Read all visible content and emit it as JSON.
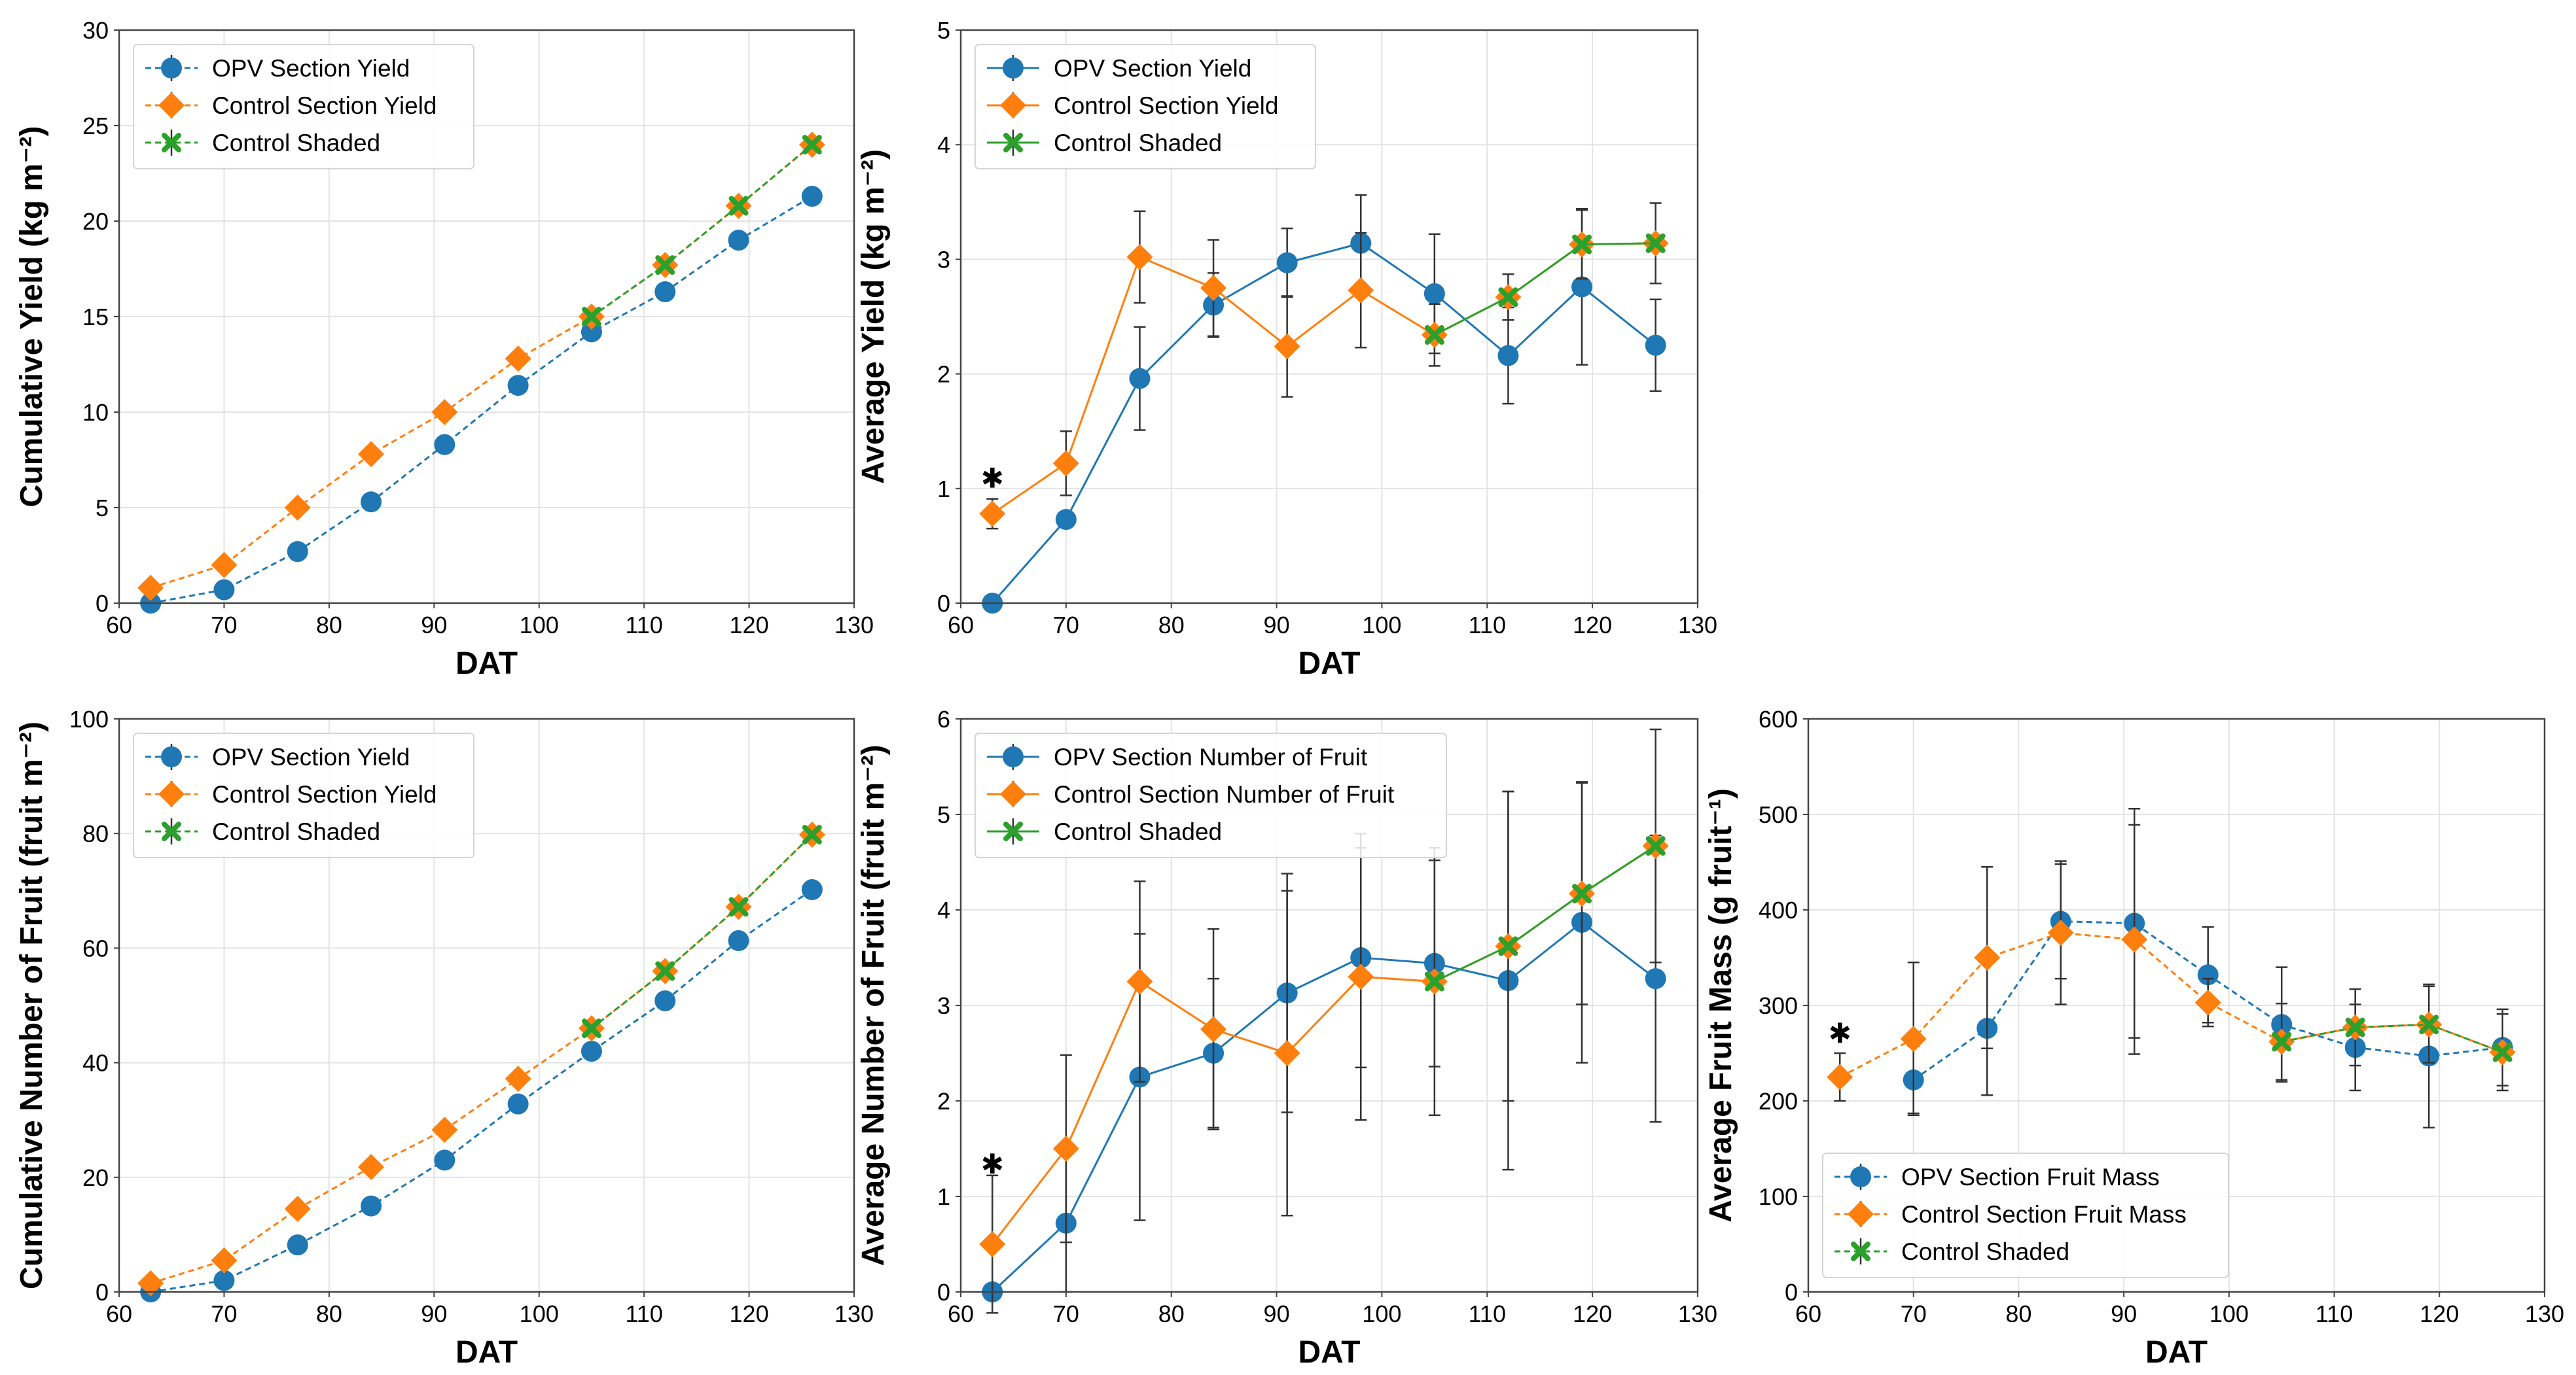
{
  "colors": {
    "opv": "#1f77b4",
    "control": "#ff7f0e",
    "shaded": "#2ca02c"
  },
  "chart_data": [
    {
      "type": "line",
      "panel": "top-left",
      "xlabel": "DAT",
      "ylabel": "Cumulative Yield (kg m⁻²)",
      "xlim": [
        60,
        130
      ],
      "ylim": [
        0,
        30
      ],
      "xticks": [
        60,
        70,
        80,
        90,
        100,
        110,
        120,
        130
      ],
      "yticks": [
        0,
        5,
        10,
        15,
        20,
        25,
        30
      ],
      "grid": true,
      "legend": {
        "placement": "upper-left",
        "entries": [
          "OPV Section Yield",
          "Control Section Yield",
          "Control Shaded"
        ]
      },
      "series": [
        {
          "name": "OPV Section Yield",
          "style": "dashed",
          "marker": "circle",
          "color": "opv",
          "x": [
            63,
            70,
            77,
            84,
            91,
            98,
            105,
            112,
            119,
            126
          ],
          "y": [
            0.0,
            0.7,
            2.7,
            5.3,
            8.3,
            11.4,
            14.2,
            16.3,
            19.0,
            21.3
          ]
        },
        {
          "name": "Control Section Yield",
          "style": "dashed",
          "marker": "diamond",
          "color": "control",
          "x": [
            63,
            70,
            77,
            84,
            91,
            98,
            105,
            112,
            119,
            126
          ],
          "y": [
            0.8,
            2.0,
            5.0,
            7.8,
            10.0,
            12.8,
            15.0,
            17.7,
            20.8,
            24.0
          ]
        },
        {
          "name": "Control Shaded",
          "style": "dashed",
          "marker": "x",
          "color": "shaded",
          "x": [
            105,
            112,
            119,
            126
          ],
          "y": [
            15.0,
            17.7,
            20.8,
            24.0
          ]
        }
      ]
    },
    {
      "type": "line",
      "panel": "top-middle",
      "xlabel": "DAT",
      "ylabel": "Average Yield (kg m⁻²)",
      "xlim": [
        60,
        130
      ],
      "ylim": [
        0,
        5
      ],
      "xticks": [
        60,
        70,
        80,
        90,
        100,
        110,
        120,
        130
      ],
      "yticks": [
        0,
        1,
        2,
        3,
        4,
        5
      ],
      "grid": true,
      "legend": {
        "placement": "upper-left",
        "entries": [
          "OPV Section Yield",
          "Control Section Yield",
          "Control Shaded"
        ]
      },
      "annotations": [
        {
          "text": "✱",
          "x": 63,
          "y": 1.1
        }
      ],
      "series": [
        {
          "name": "OPV Section Yield",
          "style": "solid",
          "marker": "circle",
          "color": "opv",
          "x": [
            63,
            70,
            77,
            84,
            91,
            98,
            105,
            112,
            119,
            126
          ],
          "y": [
            0.0,
            0.73,
            1.96,
            2.6,
            2.97,
            3.14,
            2.7,
            2.16,
            2.76,
            2.25
          ],
          "err": [
            0,
            0,
            0.45,
            0.28,
            0.3,
            0.42,
            0.52,
            0.42,
            0.68,
            0.4
          ]
        },
        {
          "name": "Control Section Yield",
          "style": "solid",
          "marker": "diamond",
          "color": "control",
          "x": [
            63,
            70,
            77,
            84,
            91,
            98,
            105,
            112,
            119,
            126
          ],
          "y": [
            0.78,
            1.22,
            3.02,
            2.75,
            2.24,
            2.73,
            2.34,
            2.67,
            3.13,
            3.14
          ],
          "err": [
            0.13,
            0.28,
            0.4,
            0.42,
            0.44,
            0.5,
            0.27,
            0.2,
            0.3,
            0.35
          ]
        },
        {
          "name": "Control Shaded",
          "style": "solid",
          "marker": "x",
          "color": "shaded",
          "x": [
            105,
            112,
            119,
            126
          ],
          "y": [
            2.34,
            2.67,
            3.13,
            3.14
          ]
        }
      ]
    },
    {
      "type": "line",
      "panel": "bottom-left",
      "xlabel": "DAT",
      "ylabel": "Cumulative Number of Fruit (fruit m⁻²)",
      "xlim": [
        60,
        130
      ],
      "ylim": [
        0,
        100
      ],
      "xticks": [
        60,
        70,
        80,
        90,
        100,
        110,
        120,
        130
      ],
      "yticks": [
        0,
        20,
        40,
        60,
        80,
        100
      ],
      "grid": true,
      "legend": {
        "placement": "upper-left",
        "entries": [
          "OPV Section Yield",
          "Control Section Yield",
          "Control Shaded"
        ]
      },
      "series": [
        {
          "name": "OPV Section Yield",
          "style": "dashed",
          "marker": "circle",
          "color": "opv",
          "x": [
            63,
            70,
            77,
            84,
            91,
            98,
            105,
            112,
            119,
            126
          ],
          "y": [
            0.0,
            2.0,
            8.2,
            15.0,
            23.0,
            32.8,
            42.0,
            50.8,
            61.3,
            70.2
          ]
        },
        {
          "name": "Control Section Yield",
          "style": "dashed",
          "marker": "diamond",
          "color": "control",
          "x": [
            63,
            70,
            77,
            84,
            91,
            98,
            105,
            112,
            119,
            126
          ],
          "y": [
            1.5,
            5.5,
            14.5,
            21.8,
            28.3,
            37.2,
            46.0,
            56.0,
            67.2,
            79.8
          ]
        },
        {
          "name": "Control Shaded",
          "style": "dashed",
          "marker": "x",
          "color": "shaded",
          "x": [
            105,
            112,
            119,
            126
          ],
          "y": [
            46.0,
            56.0,
            67.2,
            79.8
          ]
        }
      ]
    },
    {
      "type": "line",
      "panel": "bottom-middle",
      "xlabel": "DAT",
      "ylabel": "Average Number of Fruit (fruit m⁻²)",
      "xlim": [
        60,
        130
      ],
      "ylim": [
        0,
        6
      ],
      "xticks": [
        60,
        70,
        80,
        90,
        100,
        110,
        120,
        130
      ],
      "yticks": [
        0,
        1,
        2,
        3,
        4,
        5,
        6
      ],
      "grid": true,
      "legend": {
        "placement": "upper-left",
        "entries": [
          "OPV Section Number of Fruit",
          "Control Section Number of Fruit",
          "Control Shaded"
        ]
      },
      "annotations": [
        {
          "text": "✱",
          "x": 63,
          "y": 1.35
        }
      ],
      "series": [
        {
          "name": "OPV Section Number of Fruit",
          "style": "solid",
          "marker": "circle",
          "color": "opv",
          "x": [
            63,
            70,
            77,
            84,
            91,
            98,
            105,
            112,
            119,
            126
          ],
          "y": [
            0.0,
            0.72,
            2.25,
            2.5,
            3.13,
            3.5,
            3.44,
            3.26,
            3.87,
            3.28
          ],
          "err": [
            0,
            0.72,
            1.5,
            0.78,
            1.25,
            1.15,
            1.08,
            1.98,
            1.47,
            1.5
          ]
        },
        {
          "name": "Control Section Number of Fruit",
          "style": "solid",
          "marker": "diamond",
          "color": "control",
          "x": [
            63,
            70,
            77,
            84,
            91,
            98,
            105,
            112,
            119,
            126
          ],
          "y": [
            0.5,
            1.5,
            3.25,
            2.75,
            2.5,
            3.3,
            3.25,
            3.62,
            4.17,
            4.67
          ],
          "err": [
            0.72,
            0.98,
            1.05,
            1.05,
            1.7,
            1.5,
            1.4,
            1.62,
            1.16,
            1.22
          ]
        },
        {
          "name": "Control Shaded",
          "style": "solid",
          "marker": "x",
          "color": "shaded",
          "x": [
            105,
            112,
            119,
            126
          ],
          "y": [
            3.25,
            3.62,
            4.17,
            4.67
          ]
        }
      ]
    },
    {
      "type": "line",
      "panel": "bottom-right",
      "xlabel": "DAT",
      "ylabel": "Average Fruit Mass (g fruit⁻¹)",
      "xlim": [
        60,
        130
      ],
      "ylim": [
        0,
        600
      ],
      "xticks": [
        60,
        70,
        80,
        90,
        100,
        110,
        120,
        130
      ],
      "yticks": [
        0,
        100,
        200,
        300,
        400,
        500,
        600
      ],
      "grid": true,
      "legend": {
        "placement": "lower-left",
        "entries": [
          "OPV Section Fruit Mass",
          "Control Section Fruit Mass",
          "Control Shaded"
        ]
      },
      "annotations": [
        {
          "text": "✱",
          "x": 63,
          "y": 272
        }
      ],
      "series": [
        {
          "name": "OPV Section Fruit Mass",
          "style": "dashed",
          "marker": "circle",
          "color": "opv",
          "x": [
            70,
            77,
            84,
            91,
            98,
            105,
            112,
            119,
            126
          ],
          "y": [
            222,
            276,
            388,
            386,
            332,
            280,
            256,
            247,
            256
          ],
          "err": [
            35,
            70,
            60,
            120,
            50,
            60,
            45,
            75,
            40
          ]
        },
        {
          "name": "Control Section Fruit Mass",
          "style": "dashed",
          "marker": "diamond",
          "color": "control",
          "x": [
            63,
            70,
            77,
            84,
            91,
            98,
            105,
            112,
            119,
            126
          ],
          "y": [
            225,
            265,
            350,
            376,
            369,
            303,
            262,
            277,
            280,
            251
          ],
          "err": [
            25,
            80,
            95,
            75,
            120,
            25,
            40,
            40,
            40,
            40
          ]
        },
        {
          "name": "Control Shaded",
          "style": "dashed",
          "marker": "x",
          "color": "shaded",
          "x": [
            105,
            112,
            119,
            126
          ],
          "y": [
            262,
            277,
            280,
            251
          ]
        }
      ]
    }
  ]
}
